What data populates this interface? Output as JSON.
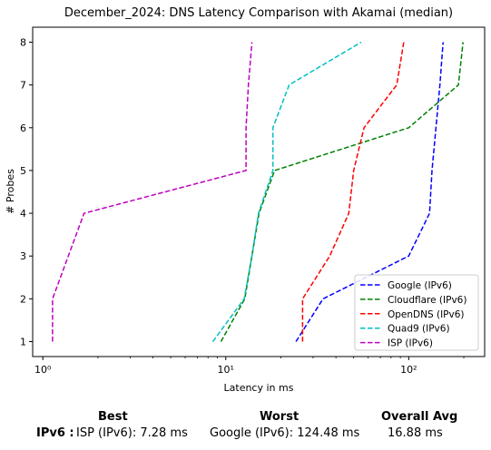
{
  "chart_data": {
    "type": "line",
    "title": "December_2024: DNS Latency Comparison with Akamai (median)",
    "xlabel": "Latency in ms",
    "ylabel": "# Probes",
    "xscale": "log",
    "xlim": [
      0.88,
      260
    ],
    "ylim": [
      0.65,
      8.35
    ],
    "xticks": [
      1,
      10,
      100
    ],
    "xtick_labels": [
      "10⁰",
      "10¹",
      "10²"
    ],
    "yticks": [
      1,
      2,
      3,
      4,
      5,
      6,
      7,
      8
    ],
    "legend_position": "lower-right",
    "series": [
      {
        "name": "Google (IPv6)",
        "color": "#0000ff",
        "x": [
          24.2,
          34,
          100,
          130,
          134,
          148,
          154
        ],
        "y": [
          1,
          2,
          3,
          4,
          5,
          7,
          8
        ]
      },
      {
        "name": "Cloudflare (IPv6)",
        "color": "#008000",
        "x": [
          9.4,
          12.7,
          15.2,
          18.5,
          100,
          187,
          198
        ],
        "y": [
          1,
          2,
          4,
          5,
          6,
          7,
          8
        ]
      },
      {
        "name": "OpenDNS (IPv6)",
        "color": "#ff0000",
        "x": [
          26.3,
          26.3,
          37,
          47,
          50,
          57,
          86,
          94
        ],
        "y": [
          1,
          2,
          3,
          4,
          5,
          6,
          7,
          8
        ]
      },
      {
        "name": "Quad9 (IPv6)",
        "color": "#00bfbf",
        "x": [
          8.5,
          12.6,
          13.9,
          15.1,
          18.1,
          18.1,
          22.2,
          55
        ],
        "y": [
          1,
          2,
          3,
          4,
          5,
          6,
          7,
          8
        ]
      },
      {
        "name": "ISP (IPv6)",
        "color": "#bf00bf",
        "x": [
          1.13,
          1.13,
          1.68,
          12.9,
          12.9,
          13.3,
          13.9
        ],
        "y": [
          1,
          2,
          4,
          5,
          6,
          7,
          8
        ]
      }
    ]
  },
  "summary": {
    "best_header": "Best",
    "worst_header": "Worst",
    "avg_header": "Overall Avg",
    "row_label": "IPv6 :",
    "best_value": "ISP (IPv6): 7.28 ms",
    "worst_value": "Google (IPv6): 124.48 ms",
    "avg_value": "16.88 ms"
  }
}
